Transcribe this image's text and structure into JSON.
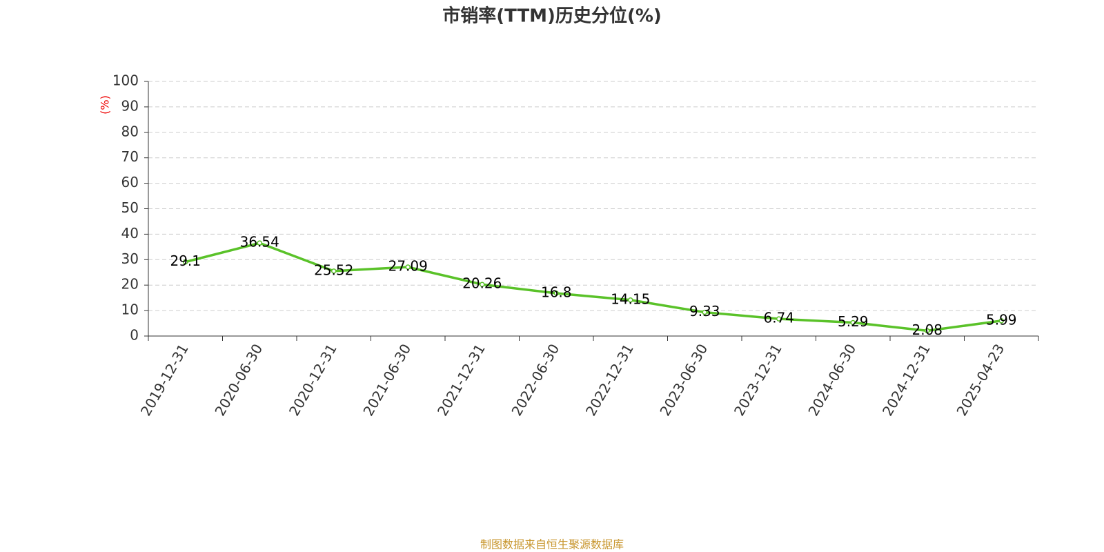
{
  "chart_data": {
    "type": "line",
    "title": "市销率(TTM)历史分位(%)",
    "ylabel": "(%)",
    "source": "制图数据来自恒生聚源数据库",
    "categories": [
      "2019-12-31",
      "2020-06-30",
      "2020-12-31",
      "2021-06-30",
      "2021-12-31",
      "2022-06-30",
      "2022-12-31",
      "2023-06-30",
      "2023-12-31",
      "2024-06-30",
      "2024-12-31",
      "2025-04-23"
    ],
    "values": [
      29.1,
      36.54,
      25.52,
      27.09,
      20.26,
      16.8,
      14.15,
      9.33,
      6.74,
      5.29,
      2.08,
      5.99
    ],
    "color": "#5ac229",
    "ylim": [
      0,
      100
    ],
    "yticks": [
      0,
      10,
      20,
      30,
      40,
      50,
      60,
      70,
      80,
      90,
      100
    ],
    "grid": true
  }
}
